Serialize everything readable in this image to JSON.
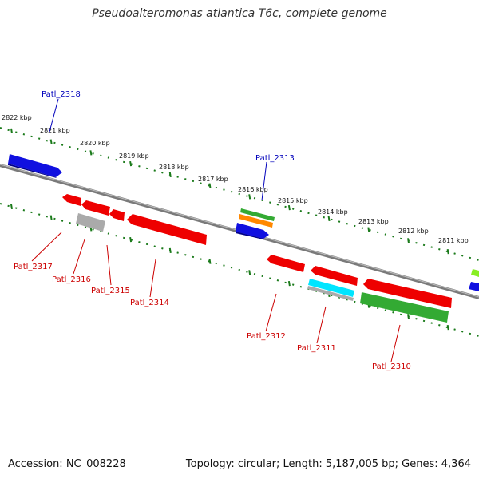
{
  "title": "Pseudoalteromonas atlantica T6c, complete genome",
  "footer": {
    "accession": "Accession: NC_008228",
    "summary": "Topology: circular; Length: 5,187,005 bp; Genes: 4,364"
  },
  "scale_labels": [
    "2822 kbp",
    "2821 kbp",
    "2820 kbp",
    "2819 kbp",
    "2818 kbp",
    "2817 kbp",
    "2816 kbp",
    "2815 kbp",
    "2814 kbp",
    "2813 kbp",
    "2812 kbp",
    "2811 kbp"
  ],
  "genes_above": [
    {
      "id": "Patl_2318",
      "color": "#1010e0"
    },
    {
      "id": "Patl_2313",
      "color": "#1010e0"
    }
  ],
  "genes_below": [
    {
      "id": "Patl_2317",
      "color": "#cc0000"
    },
    {
      "id": "Patl_2316",
      "color": "#cc0000"
    },
    {
      "id": "Patl_2315",
      "color": "#cc0000"
    },
    {
      "id": "Patl_2314",
      "color": "#cc0000"
    },
    {
      "id": "Patl_2312",
      "color": "#cc0000"
    },
    {
      "id": "Patl_2311",
      "color": "#cc0000"
    },
    {
      "id": "Patl_2310",
      "color": "#cc0000"
    }
  ],
  "colors": {
    "backbone": "#808080",
    "scale_ticks": "#1a7a1a",
    "forward_gene": "#0000ee",
    "reverse_gene": "#ee0000",
    "rna_green": "#33aa33",
    "orange": "#ff8800",
    "cyan": "#00e5ff",
    "light_green": "#88ee22",
    "gray": "#aaaaaa",
    "label_blue": "#0000bb",
    "label_red": "#cc0000"
  }
}
